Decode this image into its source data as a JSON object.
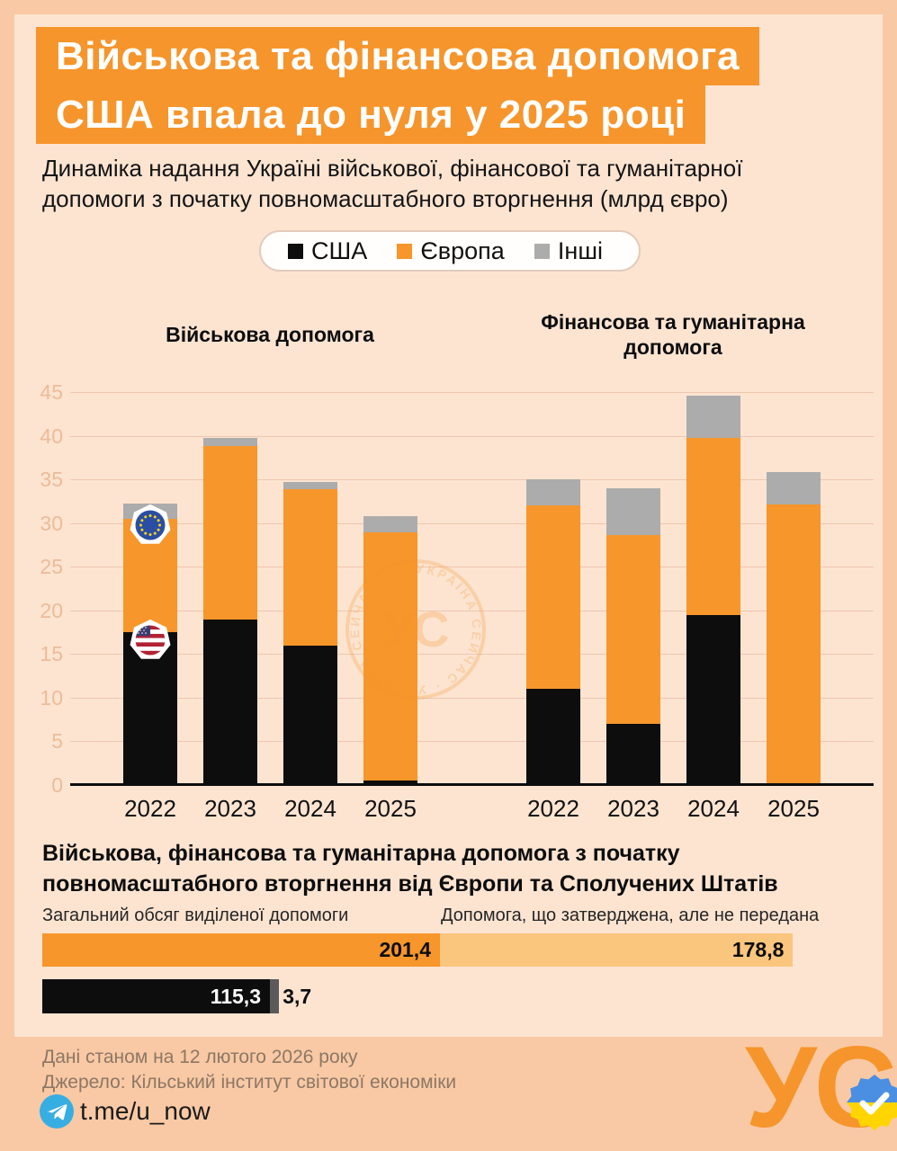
{
  "header": {
    "title_line1": "Військова та фінансова допомога",
    "title_line2": "США впала до нуля у 2025 році",
    "subtitle_line1": "Динаміка надання Україні військової, фінансової та гуманітарної",
    "subtitle_line2": "допомоги з початку повномасштабного вторгнення (млрд євро)"
  },
  "legend": {
    "items": [
      {
        "label": "США",
        "color": "#0D0D0D"
      },
      {
        "label": "Європа",
        "color": "#F6962B"
      },
      {
        "label": "Інші",
        "color": "#ACACAC"
      }
    ]
  },
  "chart_data": [
    {
      "type": "stacked-bar",
      "unit": "млрд євро",
      "ylim": [
        0,
        45
      ],
      "yticks": [
        0,
        5,
        10,
        15,
        20,
        25,
        30,
        35,
        40,
        45
      ],
      "grid": true,
      "categories": [
        "2022",
        "2023",
        "2024",
        "2025"
      ],
      "legend_entries": [
        "США",
        "Європа",
        "Інші"
      ],
      "colors": {
        "США": "#0D0D0D",
        "Європа": "#F6962B",
        "Інші": "#ACACAC"
      },
      "groups": [
        {
          "title": "Військова допомога",
          "series": [
            {
              "name": "США",
              "values": [
                17.5,
                19.0,
                16.0,
                0.5
              ]
            },
            {
              "name": "Європа",
              "values": [
                13.0,
                19.8,
                17.9,
                28.4
              ]
            },
            {
              "name": "Інші",
              "values": [
                1.7,
                1.0,
                0.8,
                1.9
              ]
            }
          ]
        },
        {
          "title": "Фінансова та гуманітарна допомога",
          "series": [
            {
              "name": "США",
              "values": [
                11.0,
                7.0,
                19.5,
                0.0
              ]
            },
            {
              "name": "Європа",
              "values": [
                21.0,
                21.6,
                20.3,
                32.1
              ]
            },
            {
              "name": "Інші",
              "values": [
                3.0,
                5.4,
                4.8,
                3.7
              ]
            }
          ]
        }
      ]
    },
    {
      "type": "bar-horizontal",
      "rows": [
        {
          "segments": [
            {
              "label": "201,4",
              "value": 201.4,
              "color": "#F6962B",
              "text_color": "#0d0d0d",
              "label_outside": false
            },
            {
              "label": "178,8",
              "value": 178.8,
              "color": "#FAC57D",
              "text_color": "#0d0d0d",
              "label_outside": false
            }
          ]
        },
        {
          "segments": [
            {
              "label": "115,3",
              "value": 115.3,
              "color": "#0D0D0D",
              "text_color": "#ffffff",
              "label_outside": false
            },
            {
              "label": "3,7",
              "value": 3.7,
              "color": "#5A5A5A",
              "text_color": "#0d0d0d",
              "label_outside": true
            }
          ]
        }
      ]
    }
  ],
  "section": {
    "heading_line1": "Військова, фінансова та гуманітарна допомога з початку",
    "heading_line2": "повномасштабного вторгнення від Європи та Сполучених Штатів",
    "left_label": "Загальний обсяг виділеної допомоги",
    "right_label": "Допомога, що затверджена, але не передана"
  },
  "watermark": {
    "ring_text": "УКРАЇНА СЕЙЧАС · УКРАЇНА СЕЙЧАС ·",
    "center_text": "УС"
  },
  "footer": {
    "data_note": "Дані станом на 12 лютого 2026 року",
    "source_note": "Джерело: Кільський інститут світової економіки",
    "telegram": "t.me/u_now",
    "logo_text": "УС"
  },
  "colors": {
    "accent_orange": "#F6952B",
    "light_orange": "#FAC57D",
    "series_gray": "#ACACAC",
    "series_black": "#0D0D0D",
    "background": "#FCE4D1",
    "frame": "#F8C9A4",
    "telegram_blue": "#37AEE2"
  }
}
